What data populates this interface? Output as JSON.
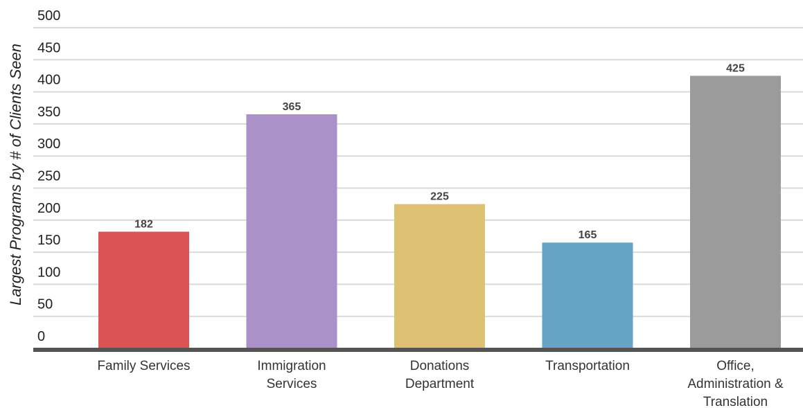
{
  "chart_data": {
    "type": "bar",
    "title": "",
    "xlabel": "",
    "ylabel": "Largest Programs by # of Clients Seen",
    "categories": [
      [
        "Family Services"
      ],
      [
        "Immigration",
        "Services"
      ],
      [
        "Donations",
        "Department"
      ],
      [
        "Transportation"
      ],
      [
        "Office,",
        "Administration &",
        "Translation"
      ]
    ],
    "values": [
      182,
      365,
      225,
      165,
      425
    ],
    "data_labels": [
      "182",
      "365",
      "225",
      "165",
      "425"
    ],
    "colors": [
      "#db5355",
      "#aa91c8",
      "#dfc173",
      "#65a4c4",
      "#9b9b9b"
    ],
    "ylim": [
      0,
      500
    ],
    "yticks": [
      0,
      50,
      100,
      150,
      200,
      250,
      300,
      350,
      400,
      450,
      500
    ],
    "grid": true,
    "legend": "none"
  }
}
